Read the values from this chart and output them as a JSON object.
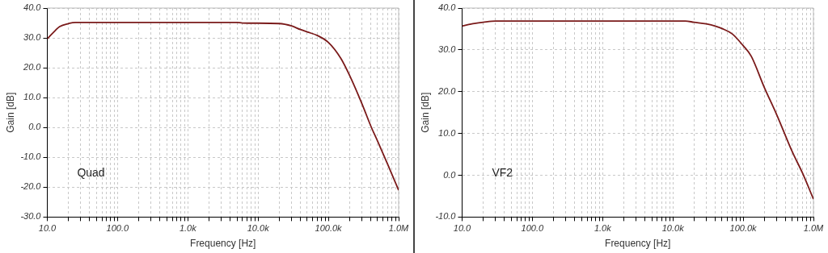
{
  "chart_data": [
    {
      "type": "line",
      "xlabel": "Frequency [Hz]",
      "ylabel": "Gain [dB]",
      "annotations": [
        "Quad"
      ],
      "log": "x",
      "grid": true,
      "series": [
        {
          "color": "#7a1a1a",
          "x": [
            10,
            13,
            15,
            20,
            25,
            5000,
            6000,
            20000,
            30000,
            40000,
            50000,
            70000,
            100000,
            150000,
            200000,
            300000,
            410000,
            500000,
            700000,
            1000000
          ],
          "values": [
            29.7,
            32.5,
            33.8,
            34.8,
            35.2,
            35.2,
            35.0,
            34.8,
            34.0,
            32.8,
            32.0,
            30.8,
            28.5,
            23.2,
            17.5,
            8.0,
            0.0,
            -4.5,
            -12.4,
            -21.0
          ]
        }
      ],
      "xlim": [
        10,
        1000000
      ],
      "xticks": [
        {
          "value": 10,
          "label": "10.0"
        },
        {
          "value": 20,
          "label": null
        },
        {
          "value": 30,
          "label": null
        },
        {
          "value": 40,
          "label": null
        },
        {
          "value": 50,
          "label": null
        },
        {
          "value": 60,
          "label": null
        },
        {
          "value": 70,
          "label": null
        },
        {
          "value": 80,
          "label": null
        },
        {
          "value": 90,
          "label": null
        },
        {
          "value": 100,
          "label": "100.0"
        },
        {
          "value": 200,
          "label": null
        },
        {
          "value": 300,
          "label": null
        },
        {
          "value": 400,
          "label": null
        },
        {
          "value": 500,
          "label": null
        },
        {
          "value": 600,
          "label": null
        },
        {
          "value": 700,
          "label": null
        },
        {
          "value": 800,
          "label": null
        },
        {
          "value": 900,
          "label": null
        },
        {
          "value": 1000,
          "label": "1.0k"
        },
        {
          "value": 2000,
          "label": null
        },
        {
          "value": 3000,
          "label": null
        },
        {
          "value": 4000,
          "label": null
        },
        {
          "value": 5000,
          "label": null
        },
        {
          "value": 6000,
          "label": null
        },
        {
          "value": 7000,
          "label": null
        },
        {
          "value": 8000,
          "label": null
        },
        {
          "value": 9000,
          "label": null
        },
        {
          "value": 10000,
          "label": "10.0k"
        },
        {
          "value": 20000,
          "label": null
        },
        {
          "value": 30000,
          "label": null
        },
        {
          "value": 40000,
          "label": null
        },
        {
          "value": 50000,
          "label": null
        },
        {
          "value": 60000,
          "label": null
        },
        {
          "value": 70000,
          "label": null
        },
        {
          "value": 80000,
          "label": null
        },
        {
          "value": 90000,
          "label": null
        },
        {
          "value": 100000,
          "label": "100.0k"
        },
        {
          "value": 200000,
          "label": null
        },
        {
          "value": 300000,
          "label": null
        },
        {
          "value": 400000,
          "label": null
        },
        {
          "value": 500000,
          "label": null
        },
        {
          "value": 600000,
          "label": null
        },
        {
          "value": 700000,
          "label": null
        },
        {
          "value": 800000,
          "label": null
        },
        {
          "value": 900000,
          "label": null
        },
        {
          "value": 1000000,
          "label": "1.0M"
        }
      ],
      "ylim": [
        -30,
        40
      ],
      "yticks": [
        {
          "value": -30,
          "label": "-30.0"
        },
        {
          "value": -20,
          "label": "-20.0"
        },
        {
          "value": -10,
          "label": "-10.0"
        },
        {
          "value": 0,
          "label": "0.0"
        },
        {
          "value": 10,
          "label": "10.0"
        },
        {
          "value": 20,
          "label": "20.0"
        },
        {
          "value": 30,
          "label": "30.0"
        },
        {
          "value": 40,
          "label": "40.0"
        }
      ]
    },
    {
      "type": "line",
      "xlabel": "Frequency [Hz]",
      "ylabel": "Gain [dB]",
      "annotations": [
        "VF2"
      ],
      "log": "x",
      "grid": true,
      "series": [
        {
          "color": "#7a1a1a",
          "x": [
            10,
            15,
            20,
            30,
            15000,
            20000,
            30000,
            40000,
            50000,
            70000,
            100000,
            130000,
            200000,
            300000,
            500000,
            700000,
            1000000
          ],
          "values": [
            35.7,
            36.3,
            36.6,
            36.9,
            36.9,
            36.6,
            36.2,
            35.7,
            35.1,
            33.8,
            31.0,
            28.5,
            21.0,
            14.5,
            5.6,
            0.5,
            -5.7
          ]
        }
      ],
      "xlim": [
        10,
        1000000
      ],
      "xticks": [
        {
          "value": 10,
          "label": "10.0"
        },
        {
          "value": 20,
          "label": null
        },
        {
          "value": 30,
          "label": null
        },
        {
          "value": 40,
          "label": null
        },
        {
          "value": 50,
          "label": null
        },
        {
          "value": 60,
          "label": null
        },
        {
          "value": 70,
          "label": null
        },
        {
          "value": 80,
          "label": null
        },
        {
          "value": 90,
          "label": null
        },
        {
          "value": 100,
          "label": "100.0"
        },
        {
          "value": 200,
          "label": null
        },
        {
          "value": 300,
          "label": null
        },
        {
          "value": 400,
          "label": null
        },
        {
          "value": 500,
          "label": null
        },
        {
          "value": 600,
          "label": null
        },
        {
          "value": 700,
          "label": null
        },
        {
          "value": 800,
          "label": null
        },
        {
          "value": 900,
          "label": null
        },
        {
          "value": 1000,
          "label": "1.0k"
        },
        {
          "value": 2000,
          "label": null
        },
        {
          "value": 3000,
          "label": null
        },
        {
          "value": 4000,
          "label": null
        },
        {
          "value": 5000,
          "label": null
        },
        {
          "value": 6000,
          "label": null
        },
        {
          "value": 7000,
          "label": null
        },
        {
          "value": 8000,
          "label": null
        },
        {
          "value": 9000,
          "label": null
        },
        {
          "value": 10000,
          "label": "10.0k"
        },
        {
          "value": 20000,
          "label": null
        },
        {
          "value": 30000,
          "label": null
        },
        {
          "value": 40000,
          "label": null
        },
        {
          "value": 50000,
          "label": null
        },
        {
          "value": 60000,
          "label": null
        },
        {
          "value": 70000,
          "label": null
        },
        {
          "value": 80000,
          "label": null
        },
        {
          "value": 90000,
          "label": null
        },
        {
          "value": 100000,
          "label": "100.0k"
        },
        {
          "value": 200000,
          "label": null
        },
        {
          "value": 300000,
          "label": null
        },
        {
          "value": 400000,
          "label": null
        },
        {
          "value": 500000,
          "label": null
        },
        {
          "value": 600000,
          "label": null
        },
        {
          "value": 700000,
          "label": null
        },
        {
          "value": 800000,
          "label": null
        },
        {
          "value": 900000,
          "label": null
        },
        {
          "value": 1000000,
          "label": "1.0M"
        }
      ],
      "ylim": [
        -10,
        40
      ],
      "yticks": [
        {
          "value": -10,
          "label": "-10.0"
        },
        {
          "value": 0,
          "label": "0.0"
        },
        {
          "value": 10,
          "label": "10.0"
        },
        {
          "value": 20,
          "label": "20.0"
        },
        {
          "value": 30,
          "label": "30.0"
        },
        {
          "value": 40,
          "label": "40.0"
        }
      ]
    }
  ]
}
